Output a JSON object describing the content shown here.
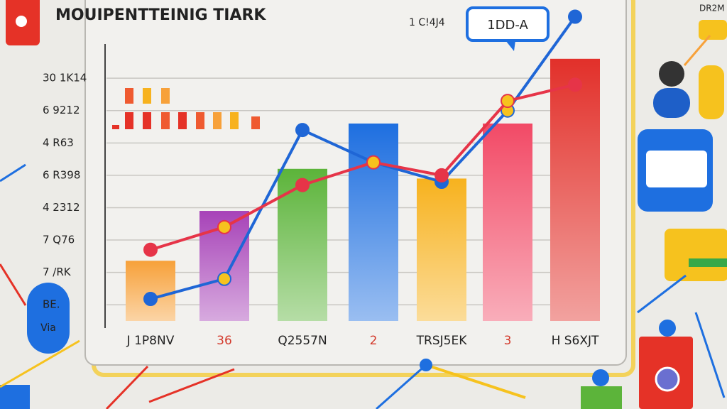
{
  "chart_data": {
    "type": "bar",
    "title": "MOUIPENTTEINIG TIARK",
    "subtitle": "1 C!4J4",
    "badge": "1DD-A",
    "corner_label": "DR2M",
    "side_label": "Via",
    "categories": [
      "J 1P8NV",
      "36",
      "Q2557N",
      "2",
      "TRSJ5EK",
      "3",
      "H S6XJT"
    ],
    "category_colors": [
      "#222222",
      "#d33a2c",
      "#222222",
      "#d33a2c",
      "#222222",
      "#d33a2c",
      "#222222"
    ],
    "values": [
      1.86,
      3.4,
      4.7,
      6.1,
      4.4,
      6.1,
      8.1
    ],
    "bar_colors": [
      "#f7a13a",
      "#a743b8",
      "#5cb43a",
      "#1e6fe0",
      "#f7b21e",
      "#f24a66",
      "#e2302a"
    ],
    "lines": [
      {
        "color": "#1f66d6",
        "values": [
          0.68,
          1.3,
          5.9,
          4.9,
          4.3,
          6.5,
          9.4
        ]
      },
      {
        "color": "#e63448",
        "values": [
          2.2,
          2.9,
          4.2,
          4.9,
          4.5,
          6.8,
          7.3
        ]
      }
    ],
    "ylim": [
      0,
      9.5
    ],
    "yticks": [
      {
        "value": 0.5,
        "label": "BE."
      },
      {
        "value": 1.5,
        "label": "7 /RK"
      },
      {
        "value": 2.5,
        "label": "7 Q76"
      },
      {
        "value": 3.5,
        "label": "4 2312"
      },
      {
        "value": 4.5,
        "label": "6 R398"
      },
      {
        "value": 5.5,
        "label": "4 R63"
      },
      {
        "value": 6.5,
        "label": "6 9212"
      },
      {
        "value": 7.5,
        "label": "30 1K14"
      }
    ],
    "grid": true
  }
}
